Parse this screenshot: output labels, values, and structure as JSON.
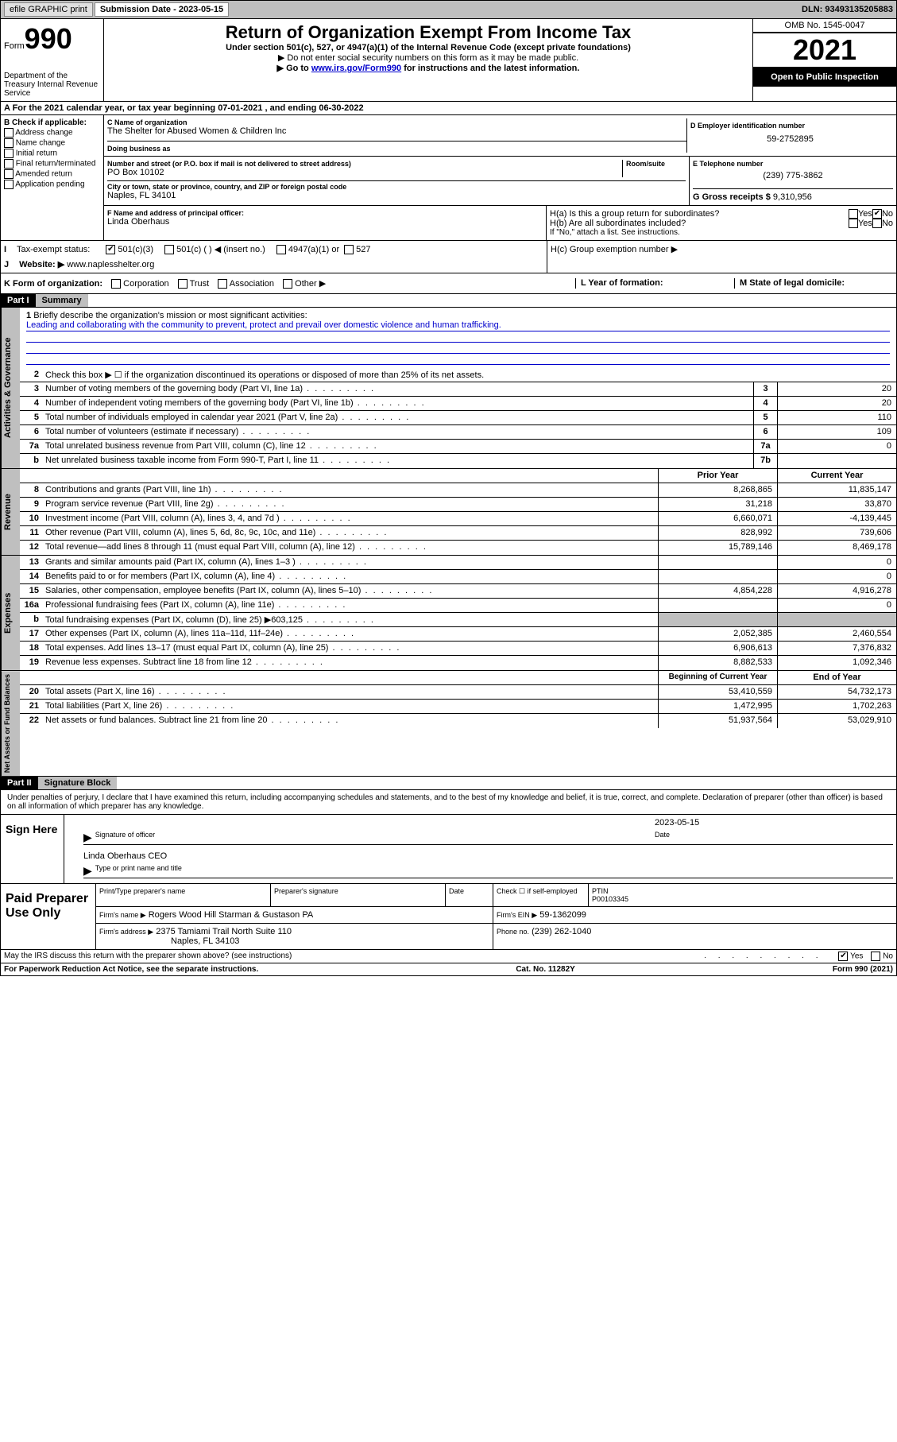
{
  "topbar": {
    "efile": "efile GRAPHIC print",
    "sub_label": "Submission Date - 2023-05-15",
    "dln": "DLN: 93493135205883"
  },
  "header": {
    "form_word": "Form",
    "form_num": "990",
    "dept": "Department of the Treasury Internal Revenue Service",
    "title": "Return of Organization Exempt From Income Tax",
    "sub1": "Under section 501(c), 527, or 4947(a)(1) of the Internal Revenue Code (except private foundations)",
    "sub2": "▶ Do not enter social security numbers on this form as it may be made public.",
    "sub3_pre": "▶ Go to ",
    "sub3_link": "www.irs.gov/Form990",
    "sub3_post": " for instructions and the latest information.",
    "omb": "OMB No. 1545-0047",
    "year": "2021",
    "open": "Open to Public Inspection"
  },
  "row_a": "A For the 2021 calendar year, or tax year beginning 07-01-2021   , and ending 06-30-2022",
  "col_b": {
    "hdr": "B Check if applicable:",
    "opts": [
      "Address change",
      "Name change",
      "Initial return",
      "Final return/terminated",
      "Amended return",
      "Application pending"
    ]
  },
  "box_c": {
    "label": "C Name of organization",
    "name": "The Shelter for Abused Women & Children Inc",
    "dba_label": "Doing business as",
    "addr_label": "Number and street (or P.O. box if mail is not delivered to street address)",
    "room_label": "Room/suite",
    "addr": "PO Box 10102",
    "city_label": "City or town, state or province, country, and ZIP or foreign postal code",
    "city": "Naples, FL  34101"
  },
  "box_d": {
    "label": "D Employer identification number",
    "val": "59-2752895"
  },
  "box_e": {
    "label": "E Telephone number",
    "val": "(239) 775-3862"
  },
  "box_g": {
    "label": "G Gross receipts $",
    "val": "9,310,956"
  },
  "box_f": {
    "label": "F Name and address of principal officer:",
    "val": "Linda Oberhaus"
  },
  "box_h": {
    "ha": "H(a)  Is this a group return for subordinates?",
    "hb": "H(b)  Are all subordinates included?",
    "hb_note": "If \"No,\" attach a list. See instructions.",
    "hc": "H(c)  Group exemption number ▶",
    "yes": "Yes",
    "no": "No"
  },
  "box_i": {
    "label": "I",
    "text": "Tax-exempt status:",
    "opts": [
      "501(c)(3)",
      "501(c) (  ) ◀ (insert no.)",
      "4947(a)(1) or",
      "527"
    ]
  },
  "box_j": {
    "label": "J",
    "text": "Website: ▶",
    "val": "www.naplesshelter.org"
  },
  "box_k": "K Form of organization:",
  "k_opts": [
    "Corporation",
    "Trust",
    "Association",
    "Other ▶"
  ],
  "box_l": "L Year of formation:",
  "box_m": "M State of legal domicile:",
  "part1": {
    "hdr": "Part I",
    "title": "Summary"
  },
  "mission": {
    "num": "1",
    "label": "Briefly describe the organization's mission or most significant activities:",
    "text": "Leading and collaborating with the community to prevent, protect and prevail over domestic violence and human trafficking."
  },
  "line2": {
    "num": "2",
    "text": "Check this box ▶ ☐  if the organization discontinued its operations or disposed of more than 25% of its net assets."
  },
  "gov_lines": [
    {
      "num": "3",
      "text": "Number of voting members of the governing body (Part VI, line 1a)",
      "box": "3",
      "val": "20"
    },
    {
      "num": "4",
      "text": "Number of independent voting members of the governing body (Part VI, line 1b)",
      "box": "4",
      "val": "20"
    },
    {
      "num": "5",
      "text": "Total number of individuals employed in calendar year 2021 (Part V, line 2a)",
      "box": "5",
      "val": "110"
    },
    {
      "num": "6",
      "text": "Total number of volunteers (estimate if necessary)",
      "box": "6",
      "val": "109"
    },
    {
      "num": "7a",
      "text": "Total unrelated business revenue from Part VIII, column (C), line 12",
      "box": "7a",
      "val": "0"
    },
    {
      "num": "b",
      "text": "Net unrelated business taxable income from Form 990-T, Part I, line 11",
      "box": "7b",
      "val": ""
    }
  ],
  "two_col_hdr": {
    "prior": "Prior Year",
    "current": "Current Year"
  },
  "rev_lines": [
    {
      "num": "8",
      "text": "Contributions and grants (Part VIII, line 1h)",
      "p": "8,268,865",
      "c": "11,835,147"
    },
    {
      "num": "9",
      "text": "Program service revenue (Part VIII, line 2g)",
      "p": "31,218",
      "c": "33,870"
    },
    {
      "num": "10",
      "text": "Investment income (Part VIII, column (A), lines 3, 4, and 7d )",
      "p": "6,660,071",
      "c": "-4,139,445"
    },
    {
      "num": "11",
      "text": "Other revenue (Part VIII, column (A), lines 5, 6d, 8c, 9c, 10c, and 11e)",
      "p": "828,992",
      "c": "739,606"
    },
    {
      "num": "12",
      "text": "Total revenue—add lines 8 through 11 (must equal Part VIII, column (A), line 12)",
      "p": "15,789,146",
      "c": "8,469,178"
    }
  ],
  "exp_lines": [
    {
      "num": "13",
      "text": "Grants and similar amounts paid (Part IX, column (A), lines 1–3 )",
      "p": "",
      "c": "0"
    },
    {
      "num": "14",
      "text": "Benefits paid to or for members (Part IX, column (A), line 4)",
      "p": "",
      "c": "0"
    },
    {
      "num": "15",
      "text": "Salaries, other compensation, employee benefits (Part IX, column (A), lines 5–10)",
      "p": "4,854,228",
      "c": "4,916,278"
    },
    {
      "num": "16a",
      "text": "Professional fundraising fees (Part IX, column (A), line 11e)",
      "p": "",
      "c": "0"
    },
    {
      "num": "b",
      "text": "Total fundraising expenses (Part IX, column (D), line 25) ▶603,125",
      "p": "shade",
      "c": "shade"
    },
    {
      "num": "17",
      "text": "Other expenses (Part IX, column (A), lines 11a–11d, 11f–24e)",
      "p": "2,052,385",
      "c": "2,460,554"
    },
    {
      "num": "18",
      "text": "Total expenses. Add lines 13–17 (must equal Part IX, column (A), line 25)",
      "p": "6,906,613",
      "c": "7,376,832"
    },
    {
      "num": "19",
      "text": "Revenue less expenses. Subtract line 18 from line 12",
      "p": "8,882,533",
      "c": "1,092,346"
    }
  ],
  "net_hdr": {
    "begin": "Beginning of Current Year",
    "end": "End of Year"
  },
  "net_lines": [
    {
      "num": "20",
      "text": "Total assets (Part X, line 16)",
      "p": "53,410,559",
      "c": "54,732,173"
    },
    {
      "num": "21",
      "text": "Total liabilities (Part X, line 26)",
      "p": "1,472,995",
      "c": "1,702,263"
    },
    {
      "num": "22",
      "text": "Net assets or fund balances. Subtract line 21 from line 20",
      "p": "51,937,564",
      "c": "53,029,910"
    }
  ],
  "part2": {
    "hdr": "Part II",
    "title": "Signature Block"
  },
  "sig": {
    "decl": "Under penalties of perjury, I declare that I have examined this return, including accompanying schedules and statements, and to the best of my knowledge and belief, it is true, correct, and complete. Declaration of preparer (other than officer) is based on all information of which preparer has any knowledge.",
    "sign_here": "Sign Here",
    "sig_officer": "Signature of officer",
    "date_label": "Date",
    "date": "2023-05-15",
    "name": "Linda Oberhaus CEO",
    "name_label": "Type or print name and title"
  },
  "prep": {
    "title": "Paid Preparer Use Only",
    "h1": "Print/Type preparer's name",
    "h2": "Preparer's signature",
    "h3": "Date",
    "h4_check": "Check ☐ if self-employed",
    "h5": "PTIN",
    "ptin": "P00103345",
    "firm_label": "Firm's name   ▶",
    "firm": "Rogers Wood Hill Starman & Gustason PA",
    "ein_label": "Firm's EIN ▶",
    "ein": "59-1362099",
    "addr_label": "Firm's address ▶",
    "addr": "2375 Tamiami Trail North Suite 110",
    "city": "Naples, FL  34103",
    "phone_label": "Phone no.",
    "phone": "(239) 262-1040"
  },
  "may_discuss": "May the IRS discuss this return with the preparer shown above? (see instructions)",
  "footer": {
    "left": "For Paperwork Reduction Act Notice, see the separate instructions.",
    "mid": "Cat. No. 11282Y",
    "right": "Form 990 (2021)"
  },
  "side_labels": {
    "gov": "Activities & Governance",
    "rev": "Revenue",
    "exp": "Expenses",
    "net": "Net Assets or Fund Balances"
  }
}
